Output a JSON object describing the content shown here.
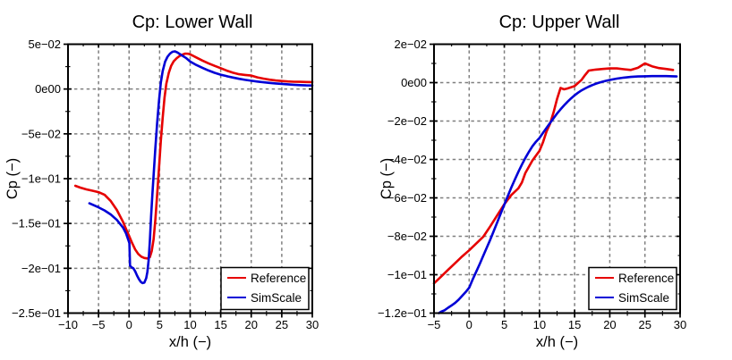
{
  "figure": {
    "background": "#ffffff"
  },
  "chart_data": [
    {
      "type": "line",
      "title": "Cp: Lower Wall",
      "xlabel": "x/h (−)",
      "ylabel": "Cp (−)",
      "xlim": [
        -10,
        30
      ],
      "ylim": [
        -0.25,
        0.05
      ],
      "grid": true,
      "legend_position": "lower right",
      "xticks": [
        -10,
        -5,
        0,
        5,
        10,
        15,
        20,
        25,
        30
      ],
      "xtick_labels": [
        "−10",
        "−5",
        "0",
        "5",
        "10",
        "15",
        "20",
        "25",
        "30"
      ],
      "yticks": [
        0.05,
        0,
        -0.05,
        -0.1,
        -0.15,
        -0.2,
        -0.25
      ],
      "ytick_labels": [
        "5e−02",
        "0e00",
        "−5e−02",
        "−1e−01",
        "−1.5e−01",
        "−2e−01",
        "−2.5e−01"
      ],
      "series": [
        {
          "name": "Reference",
          "color": "#e60000",
          "points": [
            [
              -8.8,
              -0.108
            ],
            [
              -8,
              -0.11
            ],
            [
              -7,
              -0.112
            ],
            [
              -6,
              -0.1135
            ],
            [
              -5,
              -0.115
            ],
            [
              -4,
              -0.118
            ],
            [
              -3,
              -0.125
            ],
            [
              -2,
              -0.135
            ],
            [
              -1,
              -0.148
            ],
            [
              -0.5,
              -0.156
            ],
            [
              0,
              -0.164
            ],
            [
              0.5,
              -0.172
            ],
            [
              1,
              -0.179
            ],
            [
              1.5,
              -0.184
            ],
            [
              2,
              -0.187
            ],
            [
              2.5,
              -0.1885
            ],
            [
              3,
              -0.189
            ],
            [
              3.4,
              -0.1875
            ],
            [
              3.7,
              -0.181
            ],
            [
              4,
              -0.168
            ],
            [
              4.3,
              -0.146
            ],
            [
              4.6,
              -0.118
            ],
            [
              4.9,
              -0.088
            ],
            [
              5.2,
              -0.058
            ],
            [
              5.5,
              -0.032
            ],
            [
              5.8,
              -0.01
            ],
            [
              6.1,
              0.006
            ],
            [
              6.5,
              0.018
            ],
            [
              6.9,
              0.026
            ],
            [
              7.3,
              0.031
            ],
            [
              7.8,
              0.0345
            ],
            [
              8.3,
              0.037
            ],
            [
              8.8,
              0.0385
            ],
            [
              9.2,
              0.0395
            ],
            [
              9.7,
              0.0393
            ],
            [
              10.2,
              0.038
            ],
            [
              11,
              0.0352
            ],
            [
              12,
              0.0318
            ],
            [
              13,
              0.0287
            ],
            [
              14,
              0.0259
            ],
            [
              15,
              0.0233
            ],
            [
              16,
              0.0205
            ],
            [
              17,
              0.0182
            ],
            [
              18,
              0.0165
            ],
            [
              19,
              0.0157
            ],
            [
              20,
              0.015
            ],
            [
              21,
              0.013
            ],
            [
              22,
              0.0116
            ],
            [
              23,
              0.0104
            ],
            [
              24,
              0.0095
            ],
            [
              25,
              0.0089
            ],
            [
              26,
              0.0084
            ],
            [
              27,
              0.0081
            ],
            [
              28,
              0.008
            ],
            [
              29,
              0.0078
            ],
            [
              30,
              0.0077
            ]
          ]
        },
        {
          "name": "SimScale",
          "color": "#0000d6",
          "points": [
            [
              -6.5,
              -0.1275
            ],
            [
              -6,
              -0.129
            ],
            [
              -5,
              -0.132
            ],
            [
              -4,
              -0.1355
            ],
            [
              -3,
              -0.14
            ],
            [
              -2,
              -0.146
            ],
            [
              -1,
              -0.1545
            ],
            [
              -0.5,
              -0.161
            ],
            [
              -0.1,
              -0.169
            ],
            [
              0.05,
              -0.172
            ],
            [
              0.15,
              -0.197
            ],
            [
              0.4,
              -0.199
            ],
            [
              0.7,
              -0.2
            ],
            [
              1,
              -0.2035
            ],
            [
              1.3,
              -0.208
            ],
            [
              1.6,
              -0.212
            ],
            [
              1.9,
              -0.215
            ],
            [
              2.2,
              -0.2165
            ],
            [
              2.5,
              -0.216
            ],
            [
              2.8,
              -0.211
            ],
            [
              3,
              -0.204
            ],
            [
              3.2,
              -0.191
            ],
            [
              3.4,
              -0.169
            ],
            [
              3.6,
              -0.143
            ],
            [
              3.8,
              -0.119
            ],
            [
              4,
              -0.097
            ],
            [
              4.3,
              -0.066
            ],
            [
              4.6,
              -0.038
            ],
            [
              4.9,
              -0.013
            ],
            [
              5.2,
              0.007
            ],
            [
              5.5,
              0.02
            ],
            [
              5.9,
              0.0305
            ],
            [
              6.3,
              0.036
            ],
            [
              6.7,
              0.0395
            ],
            [
              7.1,
              0.0415
            ],
            [
              7.5,
              0.042
            ],
            [
              7.9,
              0.0408
            ],
            [
              8.3,
              0.039
            ],
            [
              8.8,
              0.0368
            ],
            [
              9.3,
              0.0348
            ],
            [
              10,
              0.0307
            ],
            [
              11,
              0.0269
            ],
            [
              12,
              0.0237
            ],
            [
              13,
              0.0207
            ],
            [
              14,
              0.0181
            ],
            [
              15,
              0.016
            ],
            [
              16,
              0.0143
            ],
            [
              17,
              0.0128
            ],
            [
              18,
              0.0114
            ],
            [
              19,
              0.0102
            ],
            [
              20,
              0.0092
            ],
            [
              21,
              0.0083
            ],
            [
              22,
              0.0075
            ],
            [
              23,
              0.0068
            ],
            [
              24,
              0.0062
            ],
            [
              25,
              0.0057
            ],
            [
              26,
              0.0052
            ],
            [
              27,
              0.0048
            ],
            [
              28,
              0.0044
            ],
            [
              29,
              0.0041
            ],
            [
              30,
              0.004
            ]
          ]
        }
      ]
    },
    {
      "type": "line",
      "title": "Cp: Upper Wall",
      "xlabel": "x/h (−)",
      "ylabel": "Cp (−)",
      "xlim": [
        -5,
        30
      ],
      "ylim": [
        -0.12,
        0.02
      ],
      "grid": true,
      "legend_position": "lower right",
      "xticks": [
        -5,
        0,
        5,
        10,
        15,
        20,
        25,
        30
      ],
      "xtick_labels": [
        "−5",
        "0",
        "5",
        "10",
        "15",
        "20",
        "25",
        "30"
      ],
      "yticks": [
        0.02,
        0,
        -0.02,
        -0.04,
        -0.06,
        -0.08,
        -0.1,
        -0.12
      ],
      "ytick_labels": [
        "2e−02",
        "0e00",
        "−2e−02",
        "−4e−02",
        "−6e−02",
        "−8e−02",
        "−1e−01",
        "−1.2e−01"
      ],
      "series": [
        {
          "name": "Reference",
          "color": "#e60000",
          "points": [
            [
              -5,
              -0.1045
            ],
            [
              -4,
              -0.101
            ],
            [
              -3,
              -0.0975
            ],
            [
              -2,
              -0.094
            ],
            [
              -1,
              -0.0905
            ],
            [
              0,
              -0.0873
            ],
            [
              1,
              -0.0838
            ],
            [
              2,
              -0.0803
            ],
            [
              3,
              -0.0748
            ],
            [
              4,
              -0.069
            ],
            [
              5,
              -0.0633
            ],
            [
              6,
              -0.0585
            ],
            [
              7,
              -0.055
            ],
            [
              7.5,
              -0.052
            ],
            [
              8,
              -0.047
            ],
            [
              9,
              -0.0405
            ],
            [
              10,
              -0.0355
            ],
            [
              10.5,
              -0.031
            ],
            [
              11,
              -0.0255
            ],
            [
              11.5,
              -0.0215
            ],
            [
              12,
              -0.0155
            ],
            [
              12.5,
              -0.0085
            ],
            [
              13,
              -0.0028
            ],
            [
              13.5,
              -0.0035
            ],
            [
              14,
              -0.003
            ],
            [
              15,
              -0.0018
            ],
            [
              16,
              0.0015
            ],
            [
              16.5,
              0.004
            ],
            [
              17,
              0.0063
            ],
            [
              18,
              0.0068
            ],
            [
              19,
              0.0071
            ],
            [
              20,
              0.0074
            ],
            [
              21,
              0.0074
            ],
            [
              22,
              0.007
            ],
            [
              23,
              0.0066
            ],
            [
              24,
              0.0077
            ],
            [
              25,
              0.01
            ],
            [
              26,
              0.0085
            ],
            [
              27,
              0.0076
            ],
            [
              28,
              0.0071
            ],
            [
              29,
              0.0066
            ]
          ]
        },
        {
          "name": "SimScale",
          "color": "#0000d6",
          "points": [
            [
              -4.3,
              -0.12
            ],
            [
              -4,
              -0.1193
            ],
            [
              -3.5,
              -0.1185
            ],
            [
              -3,
              -0.1172
            ],
            [
              -2.5,
              -0.116
            ],
            [
              -2,
              -0.1147
            ],
            [
              -1.5,
              -0.113
            ],
            [
              -1,
              -0.111
            ],
            [
              -0.5,
              -0.109
            ],
            [
              0,
              -0.1068
            ],
            [
              0.5,
              -0.1025
            ],
            [
              1,
              -0.0985
            ],
            [
              1.5,
              -0.0944
            ],
            [
              2,
              -0.0902
            ],
            [
              2.5,
              -0.086
            ],
            [
              3,
              -0.0817
            ],
            [
              3.5,
              -0.0772
            ],
            [
              4,
              -0.0727
            ],
            [
              4.5,
              -0.0681
            ],
            [
              5,
              -0.0635
            ],
            [
              5.5,
              -0.059
            ],
            [
              6,
              -0.0546
            ],
            [
              6.5,
              -0.0504
            ],
            [
              7,
              -0.0464
            ],
            [
              7.5,
              -0.0427
            ],
            [
              8,
              -0.0392
            ],
            [
              8.5,
              -0.036
            ],
            [
              9,
              -0.0331
            ],
            [
              9.5,
              -0.0308
            ],
            [
              10,
              -0.0288
            ],
            [
              10.5,
              -0.0262
            ],
            [
              11,
              -0.0236
            ],
            [
              11.5,
              -0.021
            ],
            [
              12,
              -0.0185
            ],
            [
              12.5,
              -0.0161
            ],
            [
              13,
              -0.0139
            ],
            [
              13.5,
              -0.0118
            ],
            [
              14,
              -0.0099
            ],
            [
              14.5,
              -0.0082
            ],
            [
              15,
              -0.0066
            ],
            [
              15.5,
              -0.0052
            ],
            [
              16,
              -0.004
            ],
            [
              16.5,
              -0.003
            ],
            [
              17,
              -0.0021
            ],
            [
              17.5,
              -0.0013
            ],
            [
              18,
              -0.0006
            ],
            [
              18.5,
              0
            ],
            [
              19,
              0.0005
            ],
            [
              19.5,
              0.001
            ],
            [
              20,
              0.0014
            ],
            [
              21,
              0.0021
            ],
            [
              22,
              0.0026
            ],
            [
              23,
              0.003
            ],
            [
              24,
              0.0032
            ],
            [
              25,
              0.0033
            ],
            [
              26,
              0.0034
            ],
            [
              27,
              0.0034
            ],
            [
              28,
              0.0034
            ],
            [
              29,
              0.0033
            ],
            [
              29.5,
              0.0032
            ]
          ]
        }
      ]
    }
  ]
}
